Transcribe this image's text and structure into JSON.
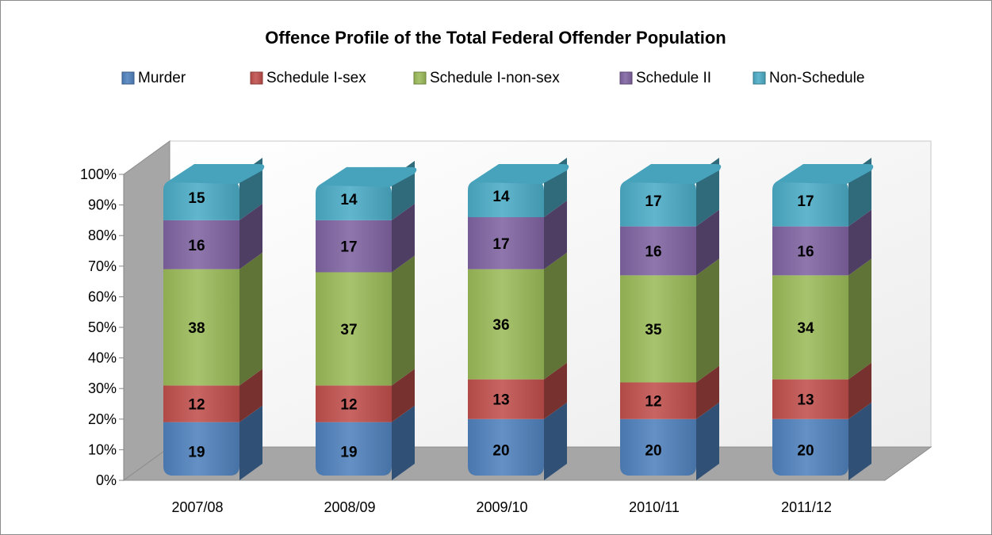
{
  "chart_data": {
    "type": "bar",
    "subtype": "3d-stacked-percent",
    "title": "Offence Profile of the Total Federal Offender Population",
    "xlabel": "",
    "ylabel": "",
    "ylim": [
      0,
      100
    ],
    "y_ticks": [
      "0%",
      "10%",
      "20%",
      "30%",
      "40%",
      "50%",
      "60%",
      "70%",
      "80%",
      "90%",
      "100%"
    ],
    "legend_position": "top",
    "grid": false,
    "categories": [
      "2007/08",
      "2008/09",
      "2009/10",
      "2010/11",
      "2011/12"
    ],
    "series": [
      {
        "name": "Murder",
        "color": "#4f81bd",
        "values": [
          19,
          19,
          20,
          20,
          20
        ]
      },
      {
        "name": "Schedule I-sex",
        "color": "#c0504d",
        "values": [
          12,
          12,
          13,
          12,
          13
        ]
      },
      {
        "name": "Schedule I-non-sex",
        "color": "#9bbb59",
        "values": [
          38,
          37,
          36,
          35,
          34
        ]
      },
      {
        "name": "Schedule II",
        "color": "#8064a2",
        "values": [
          16,
          17,
          17,
          16,
          16
        ]
      },
      {
        "name": "Non-Schedule",
        "color": "#4bacc6",
        "values": [
          15,
          14,
          14,
          17,
          17
        ]
      }
    ]
  }
}
